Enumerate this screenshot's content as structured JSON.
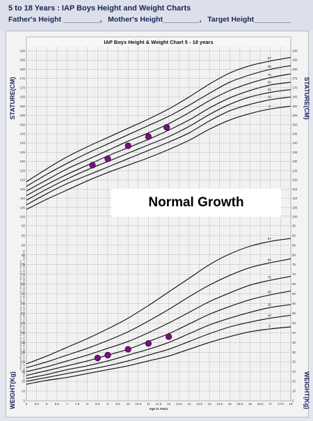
{
  "header": {
    "title": "5 to 18 Years : IAP Boys Height and Weight Charts",
    "fields": "Father's Height _________,   Mother's Height_________,   Target Height_________"
  },
  "annotation": "Normal Growth",
  "chart_data": {
    "type": "line",
    "title": "IAP Boys Height & Weight Chart 5 - 18 years",
    "xlabel": "Age in Years",
    "footnote_lines": [
      "Revised IAP growth charts for height, weight & body mass index for 5 to 18 year old Indian children",
      "V. Khadilkar et al, from Indian Academy of Pediatrics Growth Chart Committee Indian Pediatrics, Jan 2015, volume 52"
    ],
    "x_ticks": [
      "5",
      "5.5",
      "6",
      "6.5",
      "7",
      "7.5",
      "8",
      "8.5",
      "9",
      "9.5",
      "10",
      "10.5",
      "11",
      "11.5",
      "12",
      "12.5",
      "13",
      "13.5",
      "14",
      "14.5",
      "15",
      "15.5",
      "16",
      "16.5",
      "17",
      "17.5",
      "18"
    ],
    "xlim": [
      5,
      18
    ],
    "charts": [
      {
        "name": "stature",
        "ylabel_left": "STATURE(CM)",
        "ylabel_right": "STATURE(CM)",
        "ylim": [
          100,
          190
        ],
        "y_ticks": [
          "100",
          "105",
          "110",
          "115",
          "120",
          "125",
          "130",
          "135",
          "140",
          "145",
          "150",
          "155",
          "160",
          "165",
          "170",
          "175",
          "180",
          "185",
          "190"
        ],
        "x": [
          5,
          6,
          7,
          8,
          9,
          10,
          11,
          12,
          13,
          14,
          15,
          16,
          17,
          18
        ],
        "series": [
          {
            "name": "97",
            "values": [
              119,
              126,
              132.5,
              138,
              143,
              148,
              153,
              158.5,
              165,
              172,
              178,
              182,
              184.5,
              186.5
            ]
          },
          {
            "name": "90",
            "values": [
              116.5,
              123,
              129,
              134.5,
              139.5,
              144.5,
              149.5,
              154.5,
              160.5,
              167,
              173,
              177,
              180,
              182
            ]
          },
          {
            "name": "75",
            "values": [
              114,
              120,
              126,
              131,
              136,
              141,
              145.5,
              150.5,
              156.5,
              163,
              168.5,
              172.5,
              175.5,
              177.5
            ]
          },
          {
            "name": "50",
            "values": [
              111.5,
              117.5,
              123,
              128,
              133,
              137.5,
              142,
              147,
              152.5,
              159,
              164.5,
              168.5,
              171.5,
              173
            ]
          },
          {
            "name": "25",
            "values": [
              109,
              115,
              120.5,
              125.5,
              130,
              134.5,
              139,
              143.5,
              149,
              155.5,
              161,
              165,
              167.5,
              169
            ]
          },
          {
            "name": "10",
            "values": [
              106.5,
              112.5,
              118,
              122.5,
              127,
              131.5,
              136,
              140.5,
              145.5,
              152,
              157.5,
              161,
              163.5,
              165
            ]
          },
          {
            "name": "3",
            "values": [
              104,
              109.5,
              114.5,
              119.5,
              124,
              128,
              132,
              136.5,
              141.5,
              147.5,
              152.5,
              156,
              158.5,
              160
            ]
          }
        ],
        "points": {
          "x": [
            8.25,
            9,
            10,
            11,
            11.9
          ],
          "y": [
            128,
            131.5,
            138.5,
            143.5,
            148.5
          ]
        }
      },
      {
        "name": "weight",
        "ylabel_left": "WEIGHT(Kg)",
        "ylabel_right": "WEIGHT(Kg)",
        "ylim": [
          5,
          100
        ],
        "y_ticks": [
          "5",
          "10",
          "15",
          "20",
          "25",
          "30",
          "35",
          "40",
          "45",
          "50",
          "55",
          "60",
          "65",
          "70",
          "75",
          "80",
          "85",
          "90",
          "95",
          "100"
        ],
        "x": [
          5,
          6,
          7,
          8,
          9,
          10,
          11,
          12,
          13,
          14,
          15,
          16,
          17,
          18
        ],
        "series": [
          {
            "name": "97",
            "values": [
              24,
              28,
              32.5,
              37,
              42,
              47.5,
              54,
              61,
              68,
              75,
              80.5,
              84.5,
              87,
              88.5
            ]
          },
          {
            "name": "90",
            "values": [
              22,
              25,
              28.5,
              32,
              36,
              40.5,
              46,
              52,
              58.5,
              64.5,
              69.5,
              73.5,
              76,
              78
            ]
          },
          {
            "name": "75",
            "values": [
              20,
              22.5,
              25.5,
              28.5,
              32,
              35.5,
              40,
              45,
              50.5,
              56,
              60.5,
              64.5,
              67,
              69
            ]
          },
          {
            "name": "50",
            "values": [
              18,
              20.5,
              23,
              25.5,
              28.5,
              31.5,
              35.5,
              39.5,
              44.5,
              49.5,
              53.5,
              57,
              59.5,
              61.5
            ]
          },
          {
            "name": "25",
            "values": [
              16.5,
              18.5,
              21,
              23,
              25.5,
              28.5,
              31.5,
              35,
              39.5,
              44,
              47.5,
              50.5,
              53,
              54.5
            ]
          },
          {
            "name": "10",
            "values": [
              15,
              17,
              19,
              21,
              23,
              25.5,
              28.5,
              31.5,
              35.5,
              39.5,
              43,
              45.5,
              47.5,
              49
            ]
          },
          {
            "name": "3",
            "values": [
              13.5,
              15.5,
              17,
              19,
              21,
              23,
              25.5,
              28,
              31.5,
              35,
              38,
              40.5,
              42,
              43
            ]
          }
        ],
        "points": {
          "x": [
            8.5,
            9,
            10,
            11,
            12
          ],
          "y": [
            27,
            28.5,
            31.5,
            34.5,
            38
          ]
        }
      }
    ],
    "grid": true,
    "colors": {
      "curves": "#111111",
      "points": "#7a0f82",
      "point_stroke": "#2a0630",
      "grid": "#c9c9c9",
      "axis_labels": "#17245a"
    }
  }
}
